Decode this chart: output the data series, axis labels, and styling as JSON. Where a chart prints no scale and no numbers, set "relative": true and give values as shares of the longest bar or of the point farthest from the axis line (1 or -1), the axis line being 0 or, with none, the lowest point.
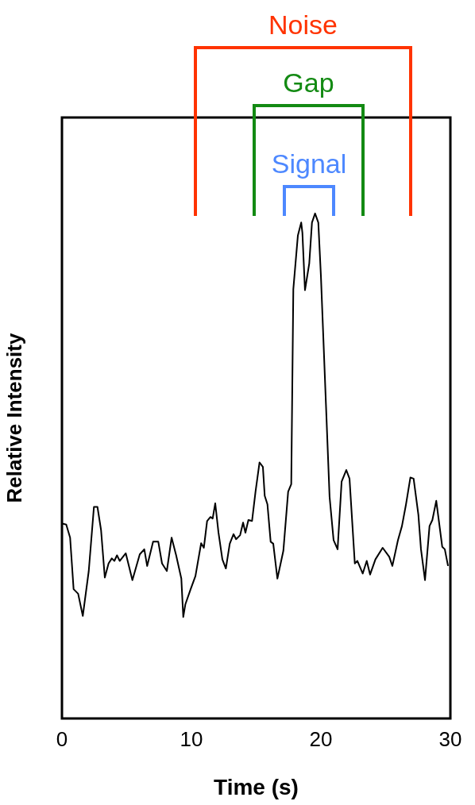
{
  "chart_data": {
    "type": "line",
    "xlabel": "Time (s)",
    "ylabel": "Relative Intensity",
    "relative": true,
    "xlim": [
      0,
      30
    ],
    "xticks": [
      0,
      10,
      20,
      30
    ],
    "grid": false,
    "legend": false,
    "annotations": [
      "Noise",
      "Gap",
      "Signal"
    ],
    "series": [
      {
        "color": "#000000",
        "x": [
          0.02,
          0.33,
          0.63,
          0.9,
          1.25,
          1.61,
          2.07,
          2.47,
          2.74,
          3.02,
          3.31,
          3.6,
          3.85,
          4.05,
          4.25,
          4.46,
          4.93,
          5.44,
          6.01,
          6.36,
          6.58,
          7.04,
          7.44,
          7.73,
          8.1,
          8.47,
          8.82,
          9.22,
          9.37,
          9.53,
          9.94,
          10.31,
          10.75,
          10.96,
          11.21,
          11.47,
          11.64,
          11.84,
          12.09,
          12.39,
          12.66,
          12.96,
          13.25,
          13.45,
          13.76,
          13.99,
          14.17,
          14.4,
          14.68,
          14.95,
          15.26,
          15.52,
          15.66,
          15.87,
          16.12,
          16.32,
          16.64,
          17.1,
          17.47,
          17.71,
          17.87,
          18.22,
          18.48,
          18.57,
          18.77,
          19.1,
          19.31,
          19.55,
          19.8,
          20.0,
          20.67,
          20.98,
          21.29,
          21.6,
          21.96,
          22.21,
          22.62,
          22.82,
          23.23,
          23.54,
          23.8,
          24.21,
          24.77,
          25.28,
          25.52,
          25.95,
          26.26,
          26.56,
          26.91,
          27.16,
          27.53,
          27.73,
          28.04,
          28.39,
          28.61,
          28.91,
          29.37,
          29.57,
          29.82
        ],
        "values": [
          0.386,
          0.384,
          0.358,
          0.256,
          0.247,
          0.203,
          0.292,
          0.419,
          0.419,
          0.373,
          0.279,
          0.307,
          0.317,
          0.312,
          0.323,
          0.312,
          0.327,
          0.274,
          0.325,
          0.335,
          0.302,
          0.35,
          0.35,
          0.307,
          0.292,
          0.358,
          0.323,
          0.277,
          0.201,
          0.226,
          0.256,
          0.282,
          0.347,
          0.338,
          0.391,
          0.399,
          0.396,
          0.426,
          0.368,
          0.315,
          0.297,
          0.346,
          0.365,
          0.355,
          0.363,
          0.388,
          0.368,
          0.393,
          0.391,
          0.449,
          0.507,
          0.498,
          0.441,
          0.424,
          0.35,
          0.346,
          0.277,
          0.332,
          0.449,
          0.464,
          0.85,
          0.956,
          0.982,
          0.962,
          0.848,
          0.901,
          0.982,
          1,
          0.982,
          0.877,
          0.439,
          0.353,
          0.335,
          0.469,
          0.492,
          0.475,
          0.307,
          0.312,
          0.287,
          0.312,
          0.285,
          0.315,
          0.338,
          0.32,
          0.302,
          0.353,
          0.381,
          0.422,
          0.477,
          0.475,
          0.403,
          0.335,
          0.274,
          0.381,
          0.393,
          0.431,
          0.34,
          0.335,
          0.302
        ]
      }
    ]
  }
}
